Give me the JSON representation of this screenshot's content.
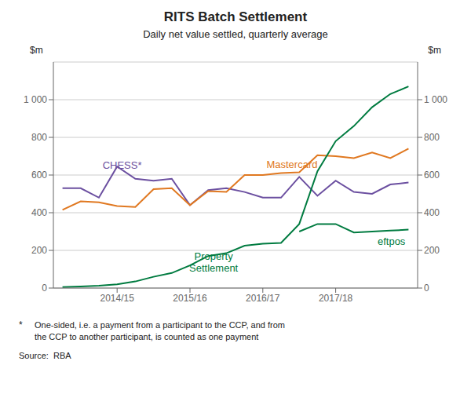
{
  "chart_data": {
    "type": "line",
    "title": "RITS Batch Settlement",
    "subtitle": "Daily net value settled, quarterly average",
    "y_label": "$m",
    "y2_label": "$m",
    "x": [
      0,
      1,
      2,
      3,
      4,
      5,
      6,
      7,
      8,
      9,
      10,
      11,
      12,
      13,
      14,
      15,
      16,
      17,
      18,
      19
    ],
    "xlim": [
      -0.5,
      19.5
    ],
    "xticks": [
      {
        "value": 3,
        "label": "2014/15"
      },
      {
        "value": 7,
        "label": "2015/16"
      },
      {
        "value": 11,
        "label": "2016/17"
      },
      {
        "value": 15,
        "label": "2017/18"
      }
    ],
    "ylim": [
      0,
      1200
    ],
    "yticks": [
      0,
      200,
      400,
      600,
      800,
      {
        "value": 1000,
        "label": "1 000"
      }
    ],
    "y2lim": [
      0,
      1200
    ],
    "y2ticks": [
      0,
      200,
      400,
      600,
      800,
      {
        "value": 1000,
        "label": "1 000"
      }
    ],
    "grid": true,
    "series": [
      {
        "name": "CHESS*",
        "color": "#6B4FA0",
        "values": [
          530,
          530,
          480,
          645,
          580,
          570,
          580,
          440,
          520,
          530,
          510,
          480,
          480,
          590,
          490,
          570,
          510,
          500,
          550,
          560
        ]
      },
      {
        "name": "Mastercard",
        "color": "#E07820",
        "values": [
          415,
          460,
          455,
          435,
          430,
          525,
          530,
          440,
          515,
          510,
          600,
          600,
          610,
          615,
          705,
          700,
          690,
          720,
          690,
          740
        ]
      },
      {
        "name": "Property\nSettlement",
        "color": "#007B40",
        "values": [
          5,
          8,
          12,
          20,
          35,
          60,
          80,
          120,
          170,
          185,
          225,
          235,
          240,
          340,
          620,
          780,
          860,
          960,
          1030,
          1070
        ]
      },
      {
        "name": "eftpos",
        "color": "#007B40",
        "values": [
          null,
          null,
          null,
          null,
          null,
          null,
          null,
          null,
          null,
          null,
          null,
          null,
          null,
          300,
          340,
          340,
          295,
          300,
          305,
          310
        ]
      }
    ],
    "annotations": [
      "*",
      "One-sided, i.e. a payment from a participant to the CCP, and from\nthe CCP to another participant, is counted as one payment",
      "Source:  RBA"
    ]
  }
}
